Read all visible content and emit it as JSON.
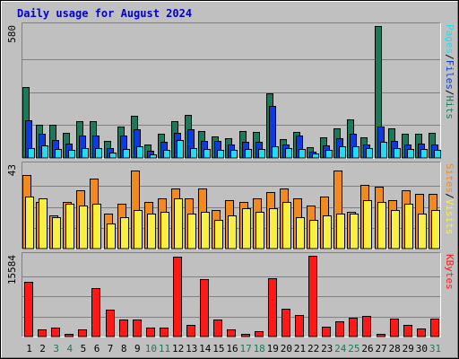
{
  "chart_data": {
    "type": "bar",
    "title": "Daily usage for August 2024",
    "categories": [
      "1",
      "2",
      "3",
      "4",
      "5",
      "6",
      "7",
      "8",
      "9",
      "10",
      "11",
      "12",
      "13",
      "14",
      "15",
      "16",
      "17",
      "18",
      "19",
      "20",
      "21",
      "22",
      "23",
      "24",
      "25",
      "26",
      "27",
      "28",
      "29",
      "30",
      "31"
    ],
    "weekend_days": [
      "3",
      "4",
      "10",
      "11",
      "17",
      "18",
      "24",
      "25",
      "31"
    ],
    "panels": [
      {
        "name": "pages-files-hits",
        "axis_max_label": "580",
        "ylim": [
          0,
          580
        ],
        "side_label": [
          "Pages",
          "/",
          "Files",
          "/",
          "Hits"
        ],
        "series": [
          {
            "name": "Hits",
            "color": "#1a7a5a",
            "values": [
              310,
              145,
              145,
              110,
              160,
              160,
              75,
              140,
              185,
              58,
              105,
              160,
              190,
              120,
              95,
              85,
              120,
              115,
              285,
              82,
              115,
              48,
              92,
              132,
              168,
              92,
              580,
              132,
              108,
              108,
              110
            ]
          },
          {
            "name": "Files",
            "color": "#0c3ce0",
            "values": [
              165,
              105,
              80,
              65,
              100,
              100,
              45,
              100,
              125,
              30,
              70,
              110,
              125,
              75,
              75,
              60,
              70,
              70,
              230,
              60,
              100,
              28,
              55,
              85,
              105,
              60,
              140,
              75,
              60,
              65,
              60
            ]
          },
          {
            "name": "Pages",
            "color": "#22dcf0",
            "values": [
              45,
              55,
              40,
              35,
              45,
              45,
              25,
              40,
              50,
              15,
              35,
              80,
              45,
              40,
              35,
              35,
              40,
              40,
              50,
              45,
              40,
              18,
              35,
              50,
              50,
              45,
              70,
              45,
              40,
              40,
              35
            ]
          }
        ]
      },
      {
        "name": "sites-visits",
        "axis_max_label": "43",
        "ylim": [
          0,
          43
        ],
        "side_label": [
          "Sites",
          "/",
          "Visits"
        ],
        "series": [
          {
            "name": "Visits",
            "color": "#f08a1e",
            "values": [
              38,
              24,
              17,
              24,
              30,
              36,
              18,
              23,
              40,
              24,
              26,
              31,
              26,
              31,
              20,
              25,
              24,
              26,
              29,
              31,
              26,
              22,
              27,
              40,
              19,
              33,
              32,
              25,
              30,
              28,
              28
            ]
          },
          {
            "name": "Sites",
            "color": "#f8f040",
            "values": [
              27,
              26,
              16,
              23,
              22,
              23,
              13,
              16,
              20,
              18,
              19,
              26,
              18,
              19,
              15,
              17,
              21,
              19,
              21,
              24,
              16,
              15,
              17,
              18,
              18,
              25,
              24,
              20,
              23,
              18,
              20
            ]
          }
        ]
      },
      {
        "name": "kbytes",
        "axis_max_label": "15584",
        "ylim": [
          0,
          15584
        ],
        "side_label": [
          "KBytes"
        ],
        "series": [
          {
            "name": "KBytes",
            "color": "#ff1818",
            "values": [
              10500,
              1400,
              1700,
              460,
              1300,
              9400,
              5200,
              3300,
              3300,
              1700,
              1700,
              15350,
              2200,
              11000,
              3300,
              1300,
              460,
              1060,
              11300,
              5350,
              4200,
              15584,
              1900,
              2950,
              3700,
              4000,
              560,
              3400,
              2200,
              1600,
              3400
            ]
          }
        ]
      }
    ]
  }
}
